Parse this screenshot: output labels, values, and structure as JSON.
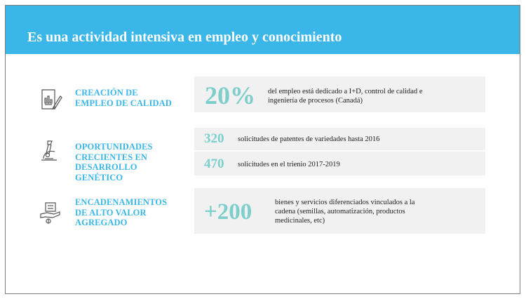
{
  "header": {
    "title": "Es una actividad intensiva en empleo y conocimiento"
  },
  "colors": {
    "accent": "#3ab6e8",
    "stat": "#7ecfcb",
    "panel": "#f1f1f1"
  },
  "rows": [
    {
      "icon": "document-chart-pen-icon",
      "category": [
        "CREACIÓN DE",
        "EMPLEO DE CALIDAD"
      ],
      "stats": [
        {
          "value": "20%",
          "text": [
            "del empleo está dedicado a I+D, control de calidad e",
            "ingeniería de procesos (Canadá)"
          ]
        }
      ]
    },
    {
      "icon": "microscope-icon",
      "category": [
        "OPORTUNIDADES",
        "CRECIENTES EN",
        "DESARROLLO",
        "GENÉTICO"
      ],
      "stats": [
        {
          "value": "320",
          "text": [
            "solicitudes de patentes de variedades hasta 2016"
          ]
        },
        {
          "value": "470",
          "text": [
            "solicitudes en el trienio 2017-2019"
          ]
        }
      ]
    },
    {
      "icon": "hand-money-icon",
      "category": [
        "ENCADENAMIENTOS",
        "DE ALTO VALOR",
        "AGREGADO"
      ],
      "stats": [
        {
          "value": "+200",
          "text": [
            "bienes y servicios diferenciados vinculados a la",
            "cadena (semillas, automatización, productos",
            "medicinales, etc)"
          ]
        }
      ]
    }
  ]
}
